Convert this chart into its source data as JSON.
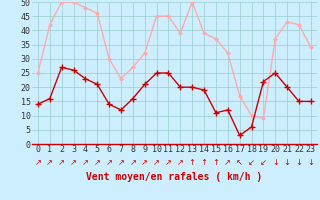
{
  "hours": [
    0,
    1,
    2,
    3,
    4,
    5,
    6,
    7,
    8,
    9,
    10,
    11,
    12,
    13,
    14,
    15,
    16,
    17,
    18,
    19,
    20,
    21,
    22,
    23
  ],
  "vent_moyen": [
    14,
    16,
    27,
    26,
    23,
    21,
    14,
    12,
    16,
    21,
    25,
    25,
    20,
    20,
    19,
    11,
    12,
    3,
    6,
    22,
    25,
    20,
    15,
    15
  ],
  "rafales": [
    25,
    42,
    50,
    50,
    48,
    46,
    30,
    23,
    27,
    32,
    45,
    45,
    39,
    50,
    39,
    37,
    32,
    17,
    10,
    9,
    37,
    43,
    42,
    34
  ],
  "wind_arrows": [
    "↗",
    "↗",
    "↗",
    "↗",
    "↗",
    "↗",
    "↗",
    "↗",
    "↗",
    "↗",
    "↗",
    "↗",
    "↗",
    "↑",
    "↑",
    "↑",
    "↗",
    "↖",
    "↙",
    "↙",
    "↓",
    "↓",
    "↓",
    "↓"
  ],
  "color_moyen": "#cc0000",
  "color_rafales": "#ffaaaa",
  "bg_color": "#cceeff",
  "grid_color": "#99cccc",
  "xlabel": "Vent moyen/en rafales ( km/h )",
  "xlabel_color": "#cc0000",
  "ylim": [
    0,
    50
  ],
  "yticks": [
    0,
    5,
    10,
    15,
    20,
    25,
    30,
    35,
    40,
    45,
    50
  ],
  "tick_fontsize": 6,
  "xlabel_fontsize": 7,
  "arrow_fontsize": 6,
  "marker_moyen": "+",
  "marker_rafales": "D",
  "marker_size_moyen": 4,
  "marker_size_rafales": 2,
  "linewidth": 1.0
}
